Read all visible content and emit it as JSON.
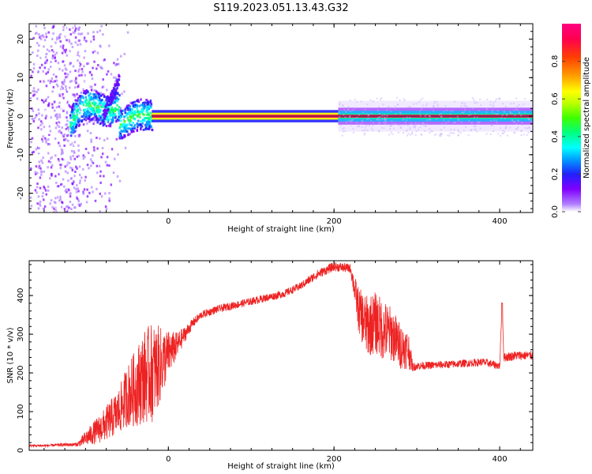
{
  "title": "S119.2023.051.13.43.G32",
  "chart_data": [
    {
      "type": "heatmap",
      "xlabel": "Height of straight line (km)",
      "ylabel": "Frequency (Hz)",
      "xlim": [
        -168,
        440
      ],
      "ylim": [
        -25,
        24
      ],
      "x_ticks": [
        0,
        200,
        400
      ],
      "y_ticks": [
        -20,
        -10,
        0,
        10,
        20
      ],
      "colorbar": {
        "label": "Normalized spectral amplitude",
        "range": [
          0,
          1
        ],
        "ticks": [
          "0.0",
          "0.2",
          "0.4",
          "0.6",
          "0.8"
        ],
        "tick_values": [
          0.0,
          0.2,
          0.4,
          0.6,
          0.8
        ],
        "colors": [
          "#ffffff",
          "#b080ff",
          "#8000ff",
          "#2020ff",
          "#00a0ff",
          "#00ffff",
          "#00ff80",
          "#40ff00",
          "#c0ff00",
          "#ffff00",
          "#ffa000",
          "#ff4000",
          "#ff0050",
          "#ff0080"
        ]
      },
      "features": {
        "dominant_line_freq_hz": 0,
        "strong_line_range_km": [
          -20,
          205
        ],
        "broad_band_range_km": [
          205,
          440
        ],
        "noisy_region_range_km": [
          -168,
          -20
        ]
      }
    },
    {
      "type": "line",
      "xlabel": "Height of straight line (km)",
      "ylabel": "SNR (10 * v/v)",
      "xlim": [
        -168,
        440
      ],
      "ylim": [
        0,
        490
      ],
      "x_ticks": [
        0,
        200,
        400
      ],
      "y_ticks": [
        0,
        100,
        200,
        300,
        400
      ],
      "series": [
        {
          "color": "#ee2222",
          "x": [
            -168,
            -150,
            -130,
            -110,
            -100,
            -90,
            -80,
            -70,
            -60,
            -50,
            -40,
            -30,
            -20,
            -10,
            0,
            10,
            20,
            30,
            40,
            50,
            60,
            80,
            100,
            120,
            140,
            160,
            180,
            200,
            220,
            230,
            240,
            250,
            260,
            270,
            280,
            290,
            295,
            300,
            320,
            340,
            360,
            380,
            400,
            403,
            405,
            420,
            440
          ],
          "y": [
            12,
            12,
            14,
            15,
            30,
            45,
            60,
            80,
            100,
            140,
            160,
            190,
            200,
            220,
            250,
            270,
            300,
            330,
            350,
            358,
            365,
            375,
            385,
            395,
            405,
            425,
            455,
            475,
            470,
            360,
            320,
            330,
            310,
            300,
            270,
            260,
            215,
            218,
            220,
            222,
            225,
            228,
            218,
            380,
            240,
            245,
            245
          ],
          "noise": [
            3,
            3,
            4,
            5,
            20,
            30,
            40,
            50,
            60,
            80,
            100,
            120,
            130,
            100,
            60,
            35,
            20,
            12,
            10,
            10,
            10,
            10,
            10,
            10,
            10,
            10,
            12,
            12,
            12,
            60,
            80,
            80,
            80,
            70,
            60,
            50,
            12,
            10,
            10,
            10,
            10,
            10,
            10,
            0,
            12,
            12,
            12
          ]
        }
      ]
    }
  ]
}
